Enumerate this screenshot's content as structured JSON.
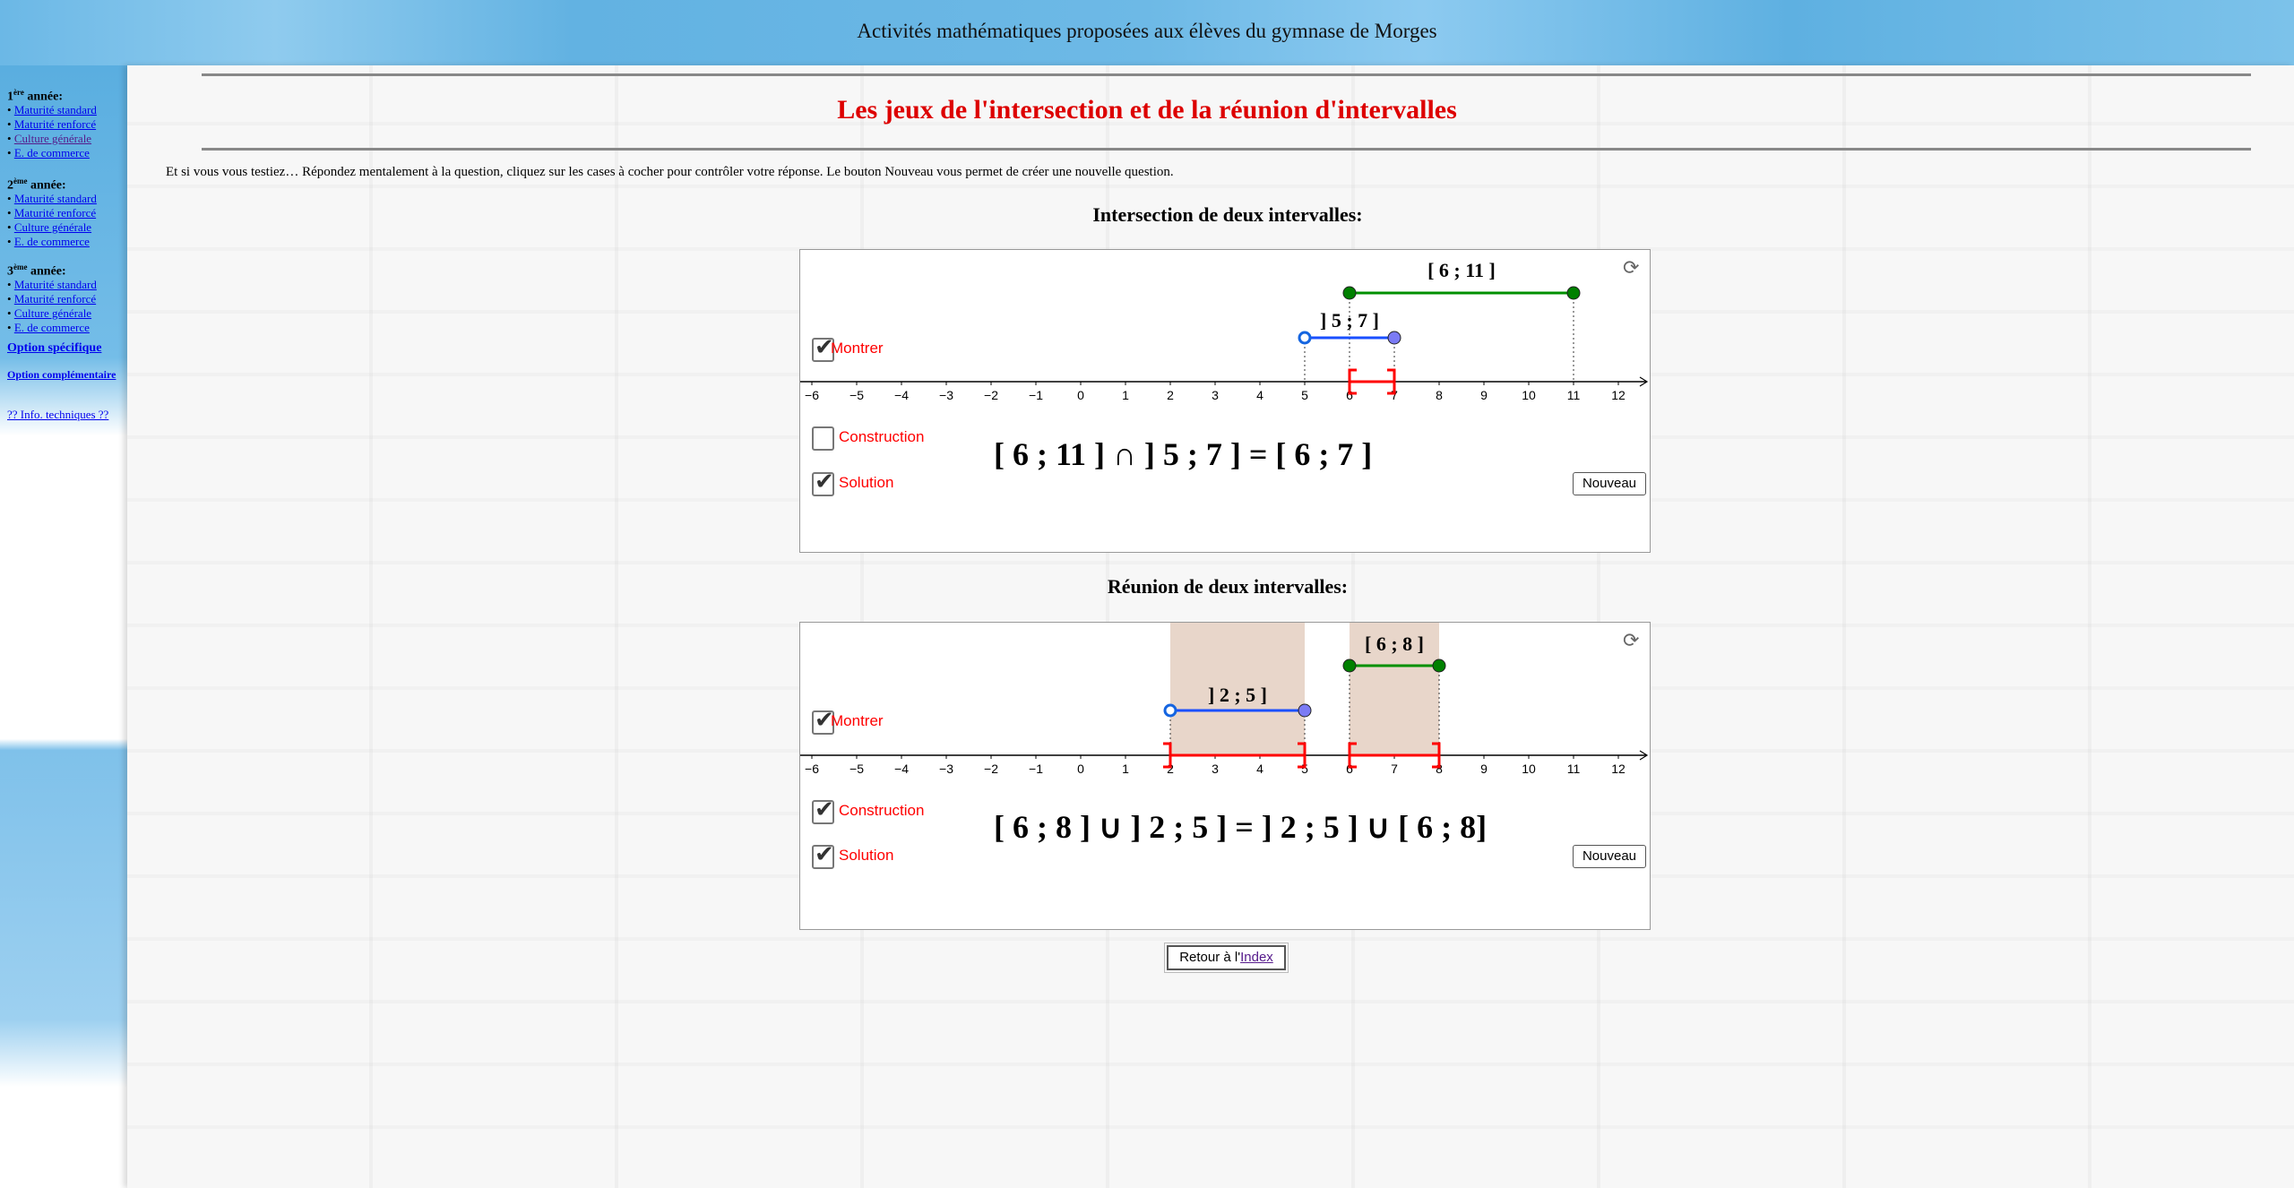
{
  "header": {
    "title": "Activités mathématiques proposées aux élèves du gymnase de Morges"
  },
  "sidebar": {
    "years": [
      {
        "num": "1",
        "sup": "ère",
        "label": " année:",
        "items": [
          "Maturité standard",
          "Maturité renforcé",
          "Culture générale",
          "E. de commerce"
        ]
      },
      {
        "num": "2",
        "sup": "ème",
        "label": " année:",
        "items": [
          "Maturité standard",
          "Maturité renforcé",
          "Culture générale",
          "E. de commerce"
        ]
      },
      {
        "num": "3",
        "sup": "ème",
        "label": " année:",
        "items": [
          "Maturité standard",
          "Maturité renforcé",
          "Culture générale",
          "E. de commerce"
        ]
      }
    ],
    "option_specifique": "Option spécifique",
    "option_complementaire": "Option complémentaire",
    "info": "?? Info. techniques ??"
  },
  "main": {
    "title": "Les jeux de l'intersection et de la réunion d'intervalles",
    "intro": "Et si vous vous testiez… Répondez mentalement à la question, cliquez sur les cases à cocher pour contrôler votre réponse. Le bouton Nouveau vous permet de créer une nouvelle question.",
    "retour_prefix": "Retour à l'",
    "retour_link": "Index"
  },
  "colors": {
    "title_red": "#dd0000",
    "green": "#008000",
    "blue": "#1a4fff",
    "result_red": "#ff0000",
    "shade": "#e8d6ca"
  },
  "applets": [
    {
      "section_title": "Intersection de deux intervalles:",
      "axis": {
        "min": -6,
        "max": 12
      },
      "intervals": [
        {
          "label": "[ 6 ; 11 ]",
          "a": 6,
          "b": 11,
          "left_closed": true,
          "right_closed": true,
          "color": "green"
        },
        {
          "label": "] 5 ; 7 ]",
          "a": 5,
          "b": 7,
          "left_closed": false,
          "right_closed": true,
          "color": "blue"
        }
      ],
      "result": [
        {
          "a": 6,
          "b": 7,
          "left_closed": true,
          "right_closed": true
        }
      ],
      "shaded": false,
      "checkboxes": {
        "montrer": {
          "label": "Montrer",
          "checked": true
        },
        "construction": {
          "label": "Construction",
          "checked": false
        },
        "solution": {
          "label": "Solution",
          "checked": true
        }
      },
      "expression": "[ 6 ; 11 ] ∩ ] 5 ; 7 ] = [ 6 ; 7 ]",
      "button": "Nouveau"
    },
    {
      "section_title": "Réunion de deux intervalles:",
      "axis": {
        "min": -6,
        "max": 12
      },
      "intervals": [
        {
          "label": "[ 6 ; 8 ]",
          "a": 6,
          "b": 8,
          "left_closed": true,
          "right_closed": true,
          "color": "green"
        },
        {
          "label": "] 2 ; 5 ]",
          "a": 2,
          "b": 5,
          "left_closed": false,
          "right_closed": true,
          "color": "blue"
        }
      ],
      "result": [
        {
          "a": 2,
          "b": 5,
          "left_closed": false,
          "right_closed": true
        },
        {
          "a": 6,
          "b": 8,
          "left_closed": true,
          "right_closed": true
        }
      ],
      "shaded": true,
      "checkboxes": {
        "montrer": {
          "label": "Montrer",
          "checked": true
        },
        "construction": {
          "label": "Construction",
          "checked": true
        },
        "solution": {
          "label": "Solution",
          "checked": true
        }
      },
      "expression": "[ 6 ; 8 ] ∪ ] 2 ; 5 ] = ] 2 ; 5 ] ∪ [ 6 ; 8]",
      "button": "Nouveau"
    }
  ]
}
